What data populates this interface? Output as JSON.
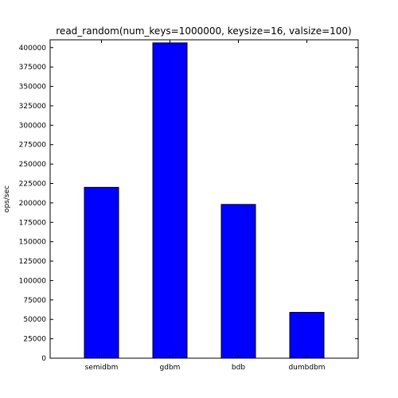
{
  "chart_data": {
    "type": "bar",
    "title": "read_random(num_keys=1000000, keysize=16, valsize=100)",
    "xlabel": "",
    "ylabel": "ops/sec",
    "categories": [
      "semidbm",
      "gdbm",
      "bdb",
      "dumbdbm"
    ],
    "values": [
      220000,
      406000,
      198000,
      59000
    ],
    "ylim": [
      0,
      410000
    ],
    "yticks": [
      0,
      25000,
      50000,
      75000,
      100000,
      125000,
      150000,
      175000,
      200000,
      225000,
      250000,
      275000,
      300000,
      325000,
      350000,
      375000,
      400000
    ],
    "bar_color": "#0000ff",
    "edge_color": "#000000",
    "grid": false,
    "legend": "none"
  }
}
